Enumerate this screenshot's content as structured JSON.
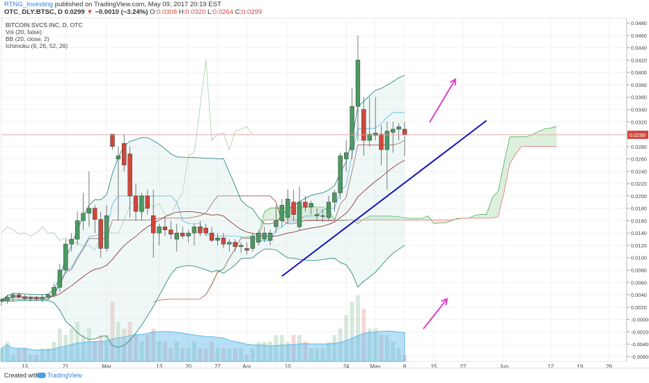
{
  "header": {
    "user": "RTNG_Investing",
    "published": " published on TradingView.com, May 09, 2017 20:19 EST",
    "symbol": "OTC_DLY:BTSC, D",
    "price": "0.0299",
    "change_arrow": "▼",
    "change": "−0.0010 (−3.24%)",
    "o_label": "O:",
    "o": "0.0308",
    "h_label": "H:",
    "h": "0.0320",
    "l_label": "L:",
    "l": "0.0264",
    "c_label": "C:",
    "c": "0.0299"
  },
  "legend": {
    "title": "BITCOIN SVCS INC, D, OTC",
    "vol": "Vol (20, false)",
    "bb": "BB (20, close, 2)",
    "ichimoku": "Ichimoku (9, 26, 52, 26)"
  },
  "footer": {
    "created": "Created with",
    "brand": "TradingView",
    "icon": "tradingview-cloud-icon"
  },
  "colors": {
    "up": "#4c9a62",
    "down": "#d2473a",
    "bb_mid": "#8c3c3c",
    "bb_band": "#2e8b7a",
    "trend": "#1010c0",
    "arrow": "#e040c8",
    "kumo_green": "#cfe8cf",
    "kumo_red": "#f8d4d0",
    "price_line": "#e8a79e",
    "vol_ma": "#5fb8ea"
  },
  "chart_data": {
    "type": "candlestick",
    "price_axis": {
      "ticks": [
        "0.0480",
        "0.0460",
        "0.0440",
        "0.0420",
        "0.0400",
        "0.0380",
        "0.0360",
        "0.0340",
        "0.0320",
        "0.0300",
        "0.0280",
        "0.0260",
        "0.0240",
        "0.0220",
        "0.0200",
        "0.0180",
        "0.0160",
        "0.0140",
        "0.0120",
        "0.0100",
        "0.0080",
        "0.0060",
        "0.0040",
        "0.0020",
        "-0.0000",
        "-0.0020",
        "-0.0040",
        "-0.0060"
      ],
      "range": [
        -0.0068,
        0.0488
      ],
      "last_price_label": "0.0299"
    },
    "time_axis": {
      "labels": [
        "13",
        "21",
        "Mar",
        "13",
        "20",
        "27",
        "Apr",
        "10",
        "24",
        "May",
        "8",
        "15",
        "22",
        "Jun",
        "12",
        "19",
        "26"
      ],
      "label_index": [
        4,
        11,
        18,
        27,
        32,
        37,
        42,
        49,
        59,
        64,
        69,
        74,
        79,
        86,
        94,
        99,
        104
      ],
      "index_range": [
        0,
        107
      ]
    },
    "candles": [
      {
        "o": 0.003,
        "h": 0.0035,
        "l": 0.0022,
        "c": 0.0032
      },
      {
        "o": 0.003,
        "h": 0.004,
        "l": 0.0025,
        "c": 0.0036
      },
      {
        "o": 0.0036,
        "h": 0.0043,
        "l": 0.003,
        "c": 0.004
      },
      {
        "o": 0.004,
        "h": 0.0044,
        "l": 0.0034,
        "c": 0.0037
      },
      {
        "o": 0.0037,
        "h": 0.004,
        "l": 0.0031,
        "c": 0.0034
      },
      {
        "o": 0.0034,
        "h": 0.0039,
        "l": 0.0029,
        "c": 0.0036
      },
      {
        "o": 0.0036,
        "h": 0.0038,
        "l": 0.003,
        "c": 0.0033
      },
      {
        "o": 0.0033,
        "h": 0.004,
        "l": 0.0028,
        "c": 0.0036
      },
      {
        "o": 0.0036,
        "h": 0.0042,
        "l": 0.0032,
        "c": 0.004
      },
      {
        "o": 0.004,
        "h": 0.0058,
        "l": 0.0036,
        "c": 0.0052
      },
      {
        "o": 0.0052,
        "h": 0.009,
        "l": 0.0045,
        "c": 0.008
      },
      {
        "o": 0.008,
        "h": 0.013,
        "l": 0.0075,
        "c": 0.0122
      },
      {
        "o": 0.0122,
        "h": 0.014,
        "l": 0.011,
        "c": 0.013
      },
      {
        "o": 0.013,
        "h": 0.0175,
        "l": 0.012,
        "c": 0.016
      },
      {
        "o": 0.016,
        "h": 0.0205,
        "l": 0.0145,
        "c": 0.0172
      },
      {
        "o": 0.0172,
        "h": 0.024,
        "l": 0.015,
        "c": 0.018
      },
      {
        "o": 0.018,
        "h": 0.0185,
        "l": 0.014,
        "c": 0.0162
      },
      {
        "o": 0.0162,
        "h": 0.0175,
        "l": 0.01,
        "c": 0.0115
      },
      {
        "o": 0.0115,
        "h": 0.0185,
        "l": 0.011,
        "c": 0.0168
      },
      {
        "o": 0.03,
        "h": 0.03,
        "l": 0.0275,
        "c": 0.028
      },
      {
        "o": 0.026,
        "h": 0.028,
        "l": 0.016,
        "c": 0.0265
      },
      {
        "o": 0.0285,
        "h": 0.03,
        "l": 0.024,
        "c": 0.025
      },
      {
        "o": 0.0268,
        "h": 0.028,
        "l": 0.0165,
        "c": 0.02
      },
      {
        "o": 0.02,
        "h": 0.022,
        "l": 0.016,
        "c": 0.0175
      },
      {
        "o": 0.0175,
        "h": 0.0205,
        "l": 0.016,
        "c": 0.02
      },
      {
        "o": 0.02,
        "h": 0.021,
        "l": 0.017,
        "c": 0.018
      },
      {
        "o": 0.0168,
        "h": 0.021,
        "l": 0.01,
        "c": 0.014
      },
      {
        "o": 0.014,
        "h": 0.0155,
        "l": 0.012,
        "c": 0.015
      },
      {
        "o": 0.015,
        "h": 0.0165,
        "l": 0.0135,
        "c": 0.0145
      },
      {
        "o": 0.0145,
        "h": 0.016,
        "l": 0.013,
        "c": 0.0138
      },
      {
        "o": 0.013,
        "h": 0.0155,
        "l": 0.011,
        "c": 0.014
      },
      {
        "o": 0.014,
        "h": 0.015,
        "l": 0.013,
        "c": 0.0135
      },
      {
        "o": 0.0135,
        "h": 0.0145,
        "l": 0.0125,
        "c": 0.014
      },
      {
        "o": 0.014,
        "h": 0.0155,
        "l": 0.012,
        "c": 0.015
      },
      {
        "o": 0.015,
        "h": 0.016,
        "l": 0.0135,
        "c": 0.014
      },
      {
        "o": 0.0148,
        "h": 0.0155,
        "l": 0.0135,
        "c": 0.014
      },
      {
        "o": 0.014,
        "h": 0.015,
        "l": 0.0125,
        "c": 0.0128
      },
      {
        "o": 0.0128,
        "h": 0.014,
        "l": 0.012,
        "c": 0.0132
      },
      {
        "o": 0.0132,
        "h": 0.014,
        "l": 0.0115,
        "c": 0.0122
      },
      {
        "o": 0.0122,
        "h": 0.013,
        "l": 0.011,
        "c": 0.0125
      },
      {
        "o": 0.0125,
        "h": 0.013,
        "l": 0.011,
        "c": 0.0118
      },
      {
        "o": 0.0118,
        "h": 0.0125,
        "l": 0.0108,
        "c": 0.012
      },
      {
        "o": 0.0115,
        "h": 0.0125,
        "l": 0.0105,
        "c": 0.0112
      },
      {
        "o": 0.0115,
        "h": 0.014,
        "l": 0.011,
        "c": 0.0135
      },
      {
        "o": 0.0125,
        "h": 0.0145,
        "l": 0.012,
        "c": 0.014
      },
      {
        "o": 0.013,
        "h": 0.015,
        "l": 0.0125,
        "c": 0.014
      },
      {
        "o": 0.0128,
        "h": 0.0145,
        "l": 0.012,
        "c": 0.014
      },
      {
        "o": 0.015,
        "h": 0.0185,
        "l": 0.014,
        "c": 0.016
      },
      {
        "o": 0.016,
        "h": 0.0195,
        "l": 0.015,
        "c": 0.0185
      },
      {
        "o": 0.0165,
        "h": 0.021,
        "l": 0.0155,
        "c": 0.0195
      },
      {
        "o": 0.019,
        "h": 0.021,
        "l": 0.016,
        "c": 0.017
      },
      {
        "o": 0.015,
        "h": 0.0215,
        "l": 0.0145,
        "c": 0.019
      },
      {
        "o": 0.019,
        "h": 0.02,
        "l": 0.0175,
        "c": 0.0182
      },
      {
        "o": 0.0182,
        "h": 0.0192,
        "l": 0.017,
        "c": 0.0188
      },
      {
        "o": 0.0168,
        "h": 0.018,
        "l": 0.016,
        "c": 0.017
      },
      {
        "o": 0.0168,
        "h": 0.0178,
        "l": 0.0158,
        "c": 0.0168
      },
      {
        "o": 0.0165,
        "h": 0.02,
        "l": 0.016,
        "c": 0.019
      },
      {
        "o": 0.019,
        "h": 0.021,
        "l": 0.0175,
        "c": 0.0205
      },
      {
        "o": 0.0205,
        "h": 0.027,
        "l": 0.0195,
        "c": 0.0265
      },
      {
        "o": 0.026,
        "h": 0.029,
        "l": 0.024,
        "c": 0.027
      },
      {
        "o": 0.0275,
        "h": 0.0375,
        "l": 0.026,
        "c": 0.0345
      },
      {
        "o": 0.0345,
        "h": 0.046,
        "l": 0.029,
        "c": 0.042
      },
      {
        "o": 0.034,
        "h": 0.036,
        "l": 0.0265,
        "c": 0.029
      },
      {
        "o": 0.029,
        "h": 0.036,
        "l": 0.028,
        "c": 0.03
      },
      {
        "o": 0.0298,
        "h": 0.036,
        "l": 0.029,
        "c": 0.0302
      },
      {
        "o": 0.03,
        "h": 0.0315,
        "l": 0.025,
        "c": 0.0275
      },
      {
        "o": 0.0275,
        "h": 0.032,
        "l": 0.021,
        "c": 0.0305
      },
      {
        "o": 0.0303,
        "h": 0.032,
        "l": 0.027,
        "c": 0.0308
      },
      {
        "o": 0.0308,
        "h": 0.0318,
        "l": 0.029,
        "c": 0.0312
      },
      {
        "o": 0.0308,
        "h": 0.032,
        "l": 0.0264,
        "c": 0.0299
      }
    ],
    "volume": [
      2,
      3,
      1,
      2,
      2,
      1,
      1,
      2,
      2,
      3,
      5,
      4,
      5,
      6,
      4,
      5,
      3,
      4,
      4,
      9,
      6,
      5,
      6,
      4,
      3,
      4,
      5,
      3,
      3,
      2,
      3,
      2,
      2,
      3,
      2,
      2,
      3,
      2,
      2,
      2,
      2,
      2,
      1,
      2,
      3,
      3,
      3,
      4,
      4,
      3,
      4,
      4,
      3,
      2,
      2,
      2,
      3,
      4,
      5,
      7,
      9,
      10,
      8,
      5,
      5,
      4,
      4,
      3,
      2,
      1
    ],
    "volume_axis_max": 10,
    "trendline": [
      {
        "i": 48,
        "p": 0.007
      },
      {
        "i": 83,
        "p": 0.0322
      }
    ],
    "annotations": [
      "arrow-up-right",
      "arrow-up-right"
    ]
  }
}
